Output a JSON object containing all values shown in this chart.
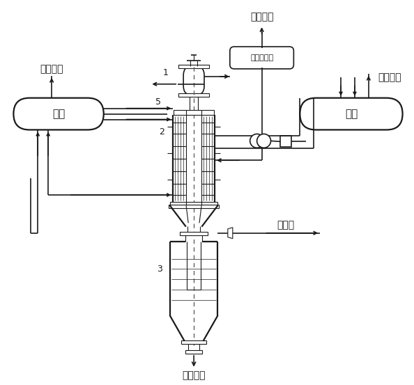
{
  "background": "#ffffff",
  "line_color": "#1a1a1a",
  "labels": {
    "sat_steam": "饱和蒸汽",
    "low_steam": "低压蒸汽",
    "superheat_steam": "过热蒸汽",
    "boiler_left": "汽包",
    "boiler_right": "汽包",
    "steam_gen": "蒸汽发生器",
    "crude_gas": "粗煤气",
    "black_water": "黑水、渣",
    "label1": "1",
    "label2": "2",
    "label3": "3",
    "label5": "5"
  },
  "figsize": [
    5.94,
    5.53
  ],
  "dpi": 100
}
